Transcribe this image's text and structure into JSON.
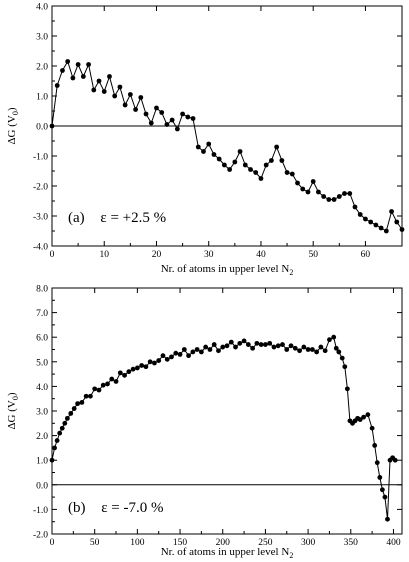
{
  "chart_data": [
    {
      "type": "line",
      "panel_label": "(a)",
      "annotation": "ε = +2.5 %",
      "xlabel": "Nr. of atoms in upper level N",
      "xlabel_sub": "2",
      "ylabel": "ΔG (V",
      "ylabel_sub": "0",
      "ylabel_close": ")",
      "xlim": [
        0,
        67
      ],
      "ylim": [
        -4.0,
        4.0
      ],
      "x_ticks": [
        0,
        10,
        20,
        30,
        40,
        50,
        60
      ],
      "x_tick_labels": [
        "0",
        "10",
        "20",
        "30",
        "40",
        "50",
        "60"
      ],
      "y_ticks": [
        -4.0,
        -3.0,
        -2.0,
        -1.0,
        0.0,
        1.0,
        2.0,
        3.0,
        4.0
      ],
      "y_tick_labels": [
        "-4.0",
        "-3.0",
        "-2.0",
        "-1.0",
        "0.0",
        "1.0",
        "2.0",
        "3.0",
        "4.0"
      ],
      "reference_line_y": 0.0,
      "grid": false,
      "series": [
        {
          "x": [
            0,
            1,
            2,
            3,
            4,
            5,
            6,
            7,
            8,
            9,
            10,
            11,
            12,
            13,
            14,
            15,
            16,
            17,
            18,
            19,
            20,
            21,
            22,
            23,
            24,
            25,
            26,
            27,
            28,
            29,
            30,
            31,
            32,
            33,
            34,
            35,
            36,
            37,
            38,
            39,
            40,
            41,
            42,
            43,
            44,
            45,
            46,
            47,
            48,
            49,
            50,
            51,
            52,
            53,
            54,
            55,
            56,
            57,
            58,
            59,
            60,
            61,
            62,
            63,
            64,
            65,
            66,
            67
          ],
          "y": [
            0.0,
            1.35,
            1.85,
            2.15,
            1.6,
            2.05,
            1.65,
            2.05,
            1.2,
            1.5,
            1.15,
            1.65,
            1.0,
            1.3,
            0.7,
            1.05,
            0.55,
            0.95,
            0.4,
            0.1,
            0.6,
            0.45,
            0.05,
            0.2,
            -0.1,
            0.4,
            0.3,
            0.25,
            -0.7,
            -0.85,
            -0.6,
            -0.95,
            -1.1,
            -1.3,
            -1.45,
            -1.2,
            -0.85,
            -1.3,
            -1.45,
            -1.55,
            -1.75,
            -1.3,
            -1.15,
            -0.7,
            -1.15,
            -1.55,
            -1.6,
            -1.9,
            -2.1,
            -2.2,
            -1.85,
            -2.2,
            -2.35,
            -2.45,
            -2.45,
            -2.35,
            -2.25,
            -2.25,
            -2.7,
            -2.95,
            -3.1,
            -3.2,
            -3.3,
            -3.4,
            -3.5,
            -2.85,
            -3.2,
            -3.45
          ]
        }
      ]
    },
    {
      "type": "line",
      "panel_label": "(b)",
      "annotation": "ε = -7.0 %",
      "xlabel": "Nr. of atoms in upper level N",
      "xlabel_sub": "2",
      "ylabel": "ΔG (V",
      "ylabel_sub": "0",
      "ylabel_close": ")",
      "xlim": [
        0,
        410
      ],
      "ylim": [
        -2.0,
        8.0
      ],
      "x_ticks": [
        0,
        50,
        100,
        150,
        200,
        250,
        300,
        350,
        400
      ],
      "x_tick_labels": [
        "0",
        "50",
        "100",
        "150",
        "200",
        "250",
        "300",
        "350",
        "400"
      ],
      "y_ticks": [
        -2.0,
        -1.0,
        0.0,
        1.0,
        2.0,
        3.0,
        4.0,
        5.0,
        6.0,
        7.0,
        8.0
      ],
      "y_tick_labels": [
        "-2.0",
        "-1.0",
        "0.0",
        "1.0",
        "2.0",
        "3.0",
        "4.0",
        "5.0",
        "6.0",
        "7.0",
        "8.0"
      ],
      "reference_line_y": 0.0,
      "grid": false,
      "series": [
        {
          "x": [
            0,
            3,
            6,
            9,
            12,
            15,
            18,
            22,
            26,
            30,
            35,
            40,
            45,
            50,
            55,
            60,
            65,
            70,
            75,
            80,
            85,
            90,
            95,
            100,
            105,
            110,
            115,
            120,
            125,
            130,
            135,
            140,
            145,
            150,
            155,
            160,
            165,
            170,
            175,
            180,
            185,
            190,
            195,
            200,
            205,
            210,
            215,
            220,
            225,
            230,
            235,
            240,
            245,
            250,
            255,
            260,
            265,
            270,
            275,
            280,
            285,
            290,
            295,
            300,
            305,
            310,
            315,
            320,
            325,
            330,
            333,
            336,
            340,
            343,
            346,
            349,
            352,
            355,
            358,
            361,
            365,
            370,
            375,
            378,
            381,
            384,
            387,
            390,
            393,
            396,
            399,
            402
          ],
          "y": [
            1.0,
            1.5,
            1.8,
            2.1,
            2.3,
            2.5,
            2.7,
            2.9,
            3.1,
            3.3,
            3.35,
            3.6,
            3.6,
            3.9,
            3.85,
            4.05,
            4.1,
            4.3,
            4.2,
            4.55,
            4.45,
            4.6,
            4.7,
            4.75,
            4.85,
            4.8,
            5.0,
            4.95,
            5.05,
            5.25,
            5.1,
            5.2,
            5.35,
            5.3,
            5.5,
            5.25,
            5.4,
            5.5,
            5.4,
            5.6,
            5.5,
            5.7,
            5.45,
            5.6,
            5.65,
            5.8,
            5.6,
            5.75,
            5.85,
            5.7,
            5.55,
            5.75,
            5.7,
            5.7,
            5.75,
            5.6,
            5.65,
            5.7,
            5.5,
            5.65,
            5.55,
            5.45,
            5.6,
            5.5,
            5.5,
            5.4,
            5.6,
            5.45,
            5.9,
            6.0,
            5.55,
            5.4,
            5.15,
            4.8,
            3.9,
            2.6,
            2.5,
            2.6,
            2.7,
            2.65,
            2.75,
            2.85,
            2.3,
            1.6,
            0.9,
            0.3,
            -0.2,
            -0.5,
            -1.4,
            1.0,
            1.1,
            1.0
          ]
        }
      ]
    }
  ]
}
